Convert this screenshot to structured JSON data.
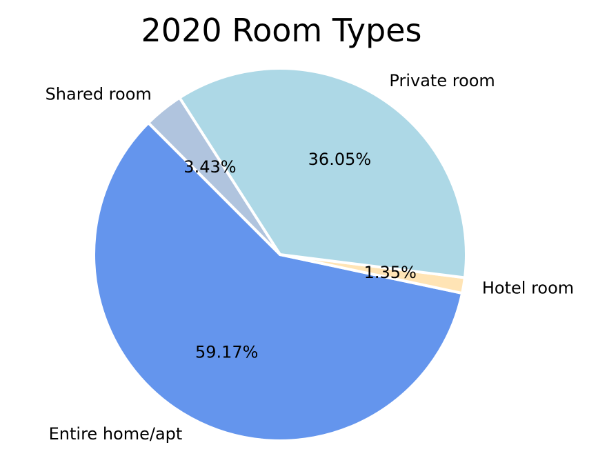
{
  "chart_data": {
    "type": "pie",
    "title": "2020 Room Types",
    "slices": [
      {
        "label": "Entire home/apt",
        "value": 59.17,
        "pct_text": "59.17%",
        "color": "#6495ED"
      },
      {
        "label": "Hotel room",
        "value": 1.35,
        "pct_text": "1.35%",
        "color": "#FFE4B5"
      },
      {
        "label": "Private room",
        "value": 36.05,
        "pct_text": "36.05%",
        "color": "#ADD8E6"
      },
      {
        "label": "Shared room",
        "value": 3.43,
        "pct_text": "3.43%",
        "color": "#B0C4DE"
      }
    ]
  }
}
